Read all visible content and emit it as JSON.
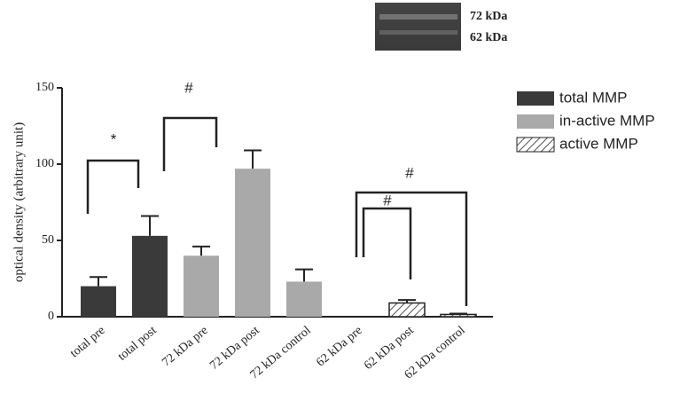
{
  "chart_data": {
    "type": "bar",
    "y_label": "optical density (arbitrary unit)",
    "categories": [
      "total pre",
      "total post",
      "72 kDa pre",
      "72 kDa post",
      "72 kDa control",
      "62 kDa pre",
      "62 kDa post",
      "62 kDa control"
    ],
    "series": [
      {
        "name": "total MMP",
        "color": "#3a3a3a",
        "values": [
          20,
          53,
          null,
          null,
          null,
          null,
          null,
          null
        ],
        "errors": [
          6,
          13,
          null,
          null,
          null,
          null,
          null,
          null
        ]
      },
      {
        "name": "in-active MMP",
        "color": "#a9a9a9",
        "values": [
          null,
          null,
          40,
          97,
          23,
          null,
          null,
          null
        ],
        "errors": [
          null,
          null,
          6,
          12,
          8,
          null,
          null,
          null
        ]
      },
      {
        "name": "active MMP",
        "color": "hatch",
        "values": [
          null,
          null,
          null,
          null,
          null,
          0,
          9,
          1.5
        ],
        "errors": [
          null,
          null,
          null,
          null,
          null,
          null,
          2,
          0.5
        ]
      }
    ],
    "ylim": [
      0,
      150
    ],
    "yticks": [
      0,
      50,
      100,
      150
    ],
    "legend": "right",
    "annotations": [
      "*",
      "#",
      "#",
      "#"
    ],
    "gel_labels": [
      "72 kDa",
      "62 kDa"
    ]
  }
}
